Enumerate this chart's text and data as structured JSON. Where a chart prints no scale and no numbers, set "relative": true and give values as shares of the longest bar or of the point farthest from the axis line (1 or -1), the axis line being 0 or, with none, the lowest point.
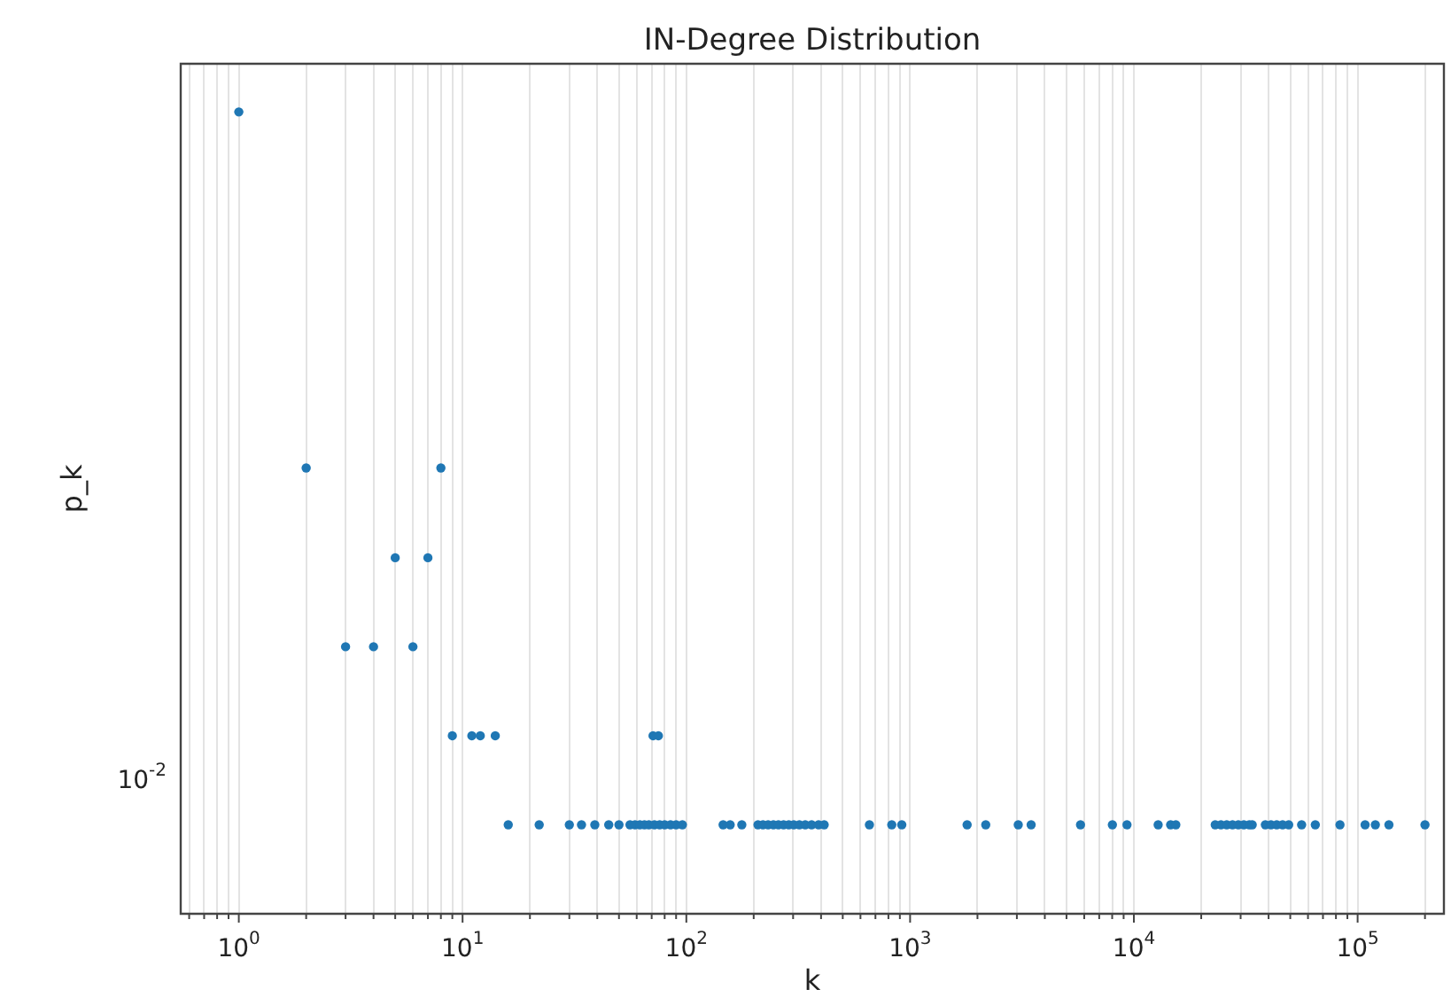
{
  "chart_data": {
    "type": "scatter",
    "title": "IN-Degree Distribution",
    "xlabel": "k",
    "ylabel": "p_k",
    "log": "x",
    "grid": "x",
    "marker": "circle",
    "relative": true,
    "annotations": [
      "10$^{-2}$"
    ],
    "xlim": [
      0.55,
      243000
    ],
    "xticks": [
      {
        "value": 1,
        "label": "10$^{0}$"
      },
      {
        "value": 10,
        "label": "10$^{1}$"
      },
      {
        "value": 100,
        "label": "10$^{2}$"
      },
      {
        "value": 1000,
        "label": "10$^{3}$"
      },
      {
        "value": 10000,
        "label": "10$^{4}$"
      },
      {
        "value": 100000,
        "label": "10$^{5}$"
      },
      {
        "value": 0.6,
        "label": null
      },
      {
        "value": 0.7,
        "label": null
      },
      {
        "value": 0.8,
        "label": null
      },
      {
        "value": 0.9,
        "label": null
      },
      {
        "value": 2,
        "label": null
      },
      {
        "value": 3,
        "label": null
      },
      {
        "value": 4,
        "label": null
      },
      {
        "value": 5,
        "label": null
      },
      {
        "value": 6,
        "label": null
      },
      {
        "value": 7,
        "label": null
      },
      {
        "value": 8,
        "label": null
      },
      {
        "value": 9,
        "label": null
      },
      {
        "value": 20,
        "label": null
      },
      {
        "value": 30,
        "label": null
      },
      {
        "value": 40,
        "label": null
      },
      {
        "value": 50,
        "label": null
      },
      {
        "value": 60,
        "label": null
      },
      {
        "value": 70,
        "label": null
      },
      {
        "value": 80,
        "label": null
      },
      {
        "value": 90,
        "label": null
      },
      {
        "value": 200,
        "label": null
      },
      {
        "value": 300,
        "label": null
      },
      {
        "value": 400,
        "label": null
      },
      {
        "value": 500,
        "label": null
      },
      {
        "value": 600,
        "label": null
      },
      {
        "value": 700,
        "label": null
      },
      {
        "value": 800,
        "label": null
      },
      {
        "value": 900,
        "label": null
      },
      {
        "value": 2000,
        "label": null
      },
      {
        "value": 3000,
        "label": null
      },
      {
        "value": 4000,
        "label": null
      },
      {
        "value": 5000,
        "label": null
      },
      {
        "value": 6000,
        "label": null
      },
      {
        "value": 7000,
        "label": null
      },
      {
        "value": 8000,
        "label": null
      },
      {
        "value": 9000,
        "label": null
      },
      {
        "value": 20000,
        "label": null
      },
      {
        "value": 30000,
        "label": null
      },
      {
        "value": 40000,
        "label": null
      },
      {
        "value": 50000,
        "label": null
      },
      {
        "value": 60000,
        "label": null
      },
      {
        "value": 70000,
        "label": null
      },
      {
        "value": 80000,
        "label": null
      },
      {
        "value": 90000,
        "label": null
      },
      {
        "value": 200000,
        "label": null
      }
    ],
    "series": [
      {
        "color": "#1f77b4",
        "x": [
          1,
          2,
          8,
          5,
          7,
          3,
          4,
          6,
          9,
          11,
          12,
          14,
          71,
          75
        ],
        "values": [
          1,
          0.556,
          0.556,
          0.444,
          0.444,
          0.333,
          0.333,
          0.333,
          0.222,
          0.222,
          0.222,
          0.222,
          0.222,
          0.222
        ]
      },
      {
        "color": "#1f77b4",
        "x": [
          16,
          22,
          30,
          34,
          39,
          45,
          50,
          56,
          59,
          62,
          65,
          68,
          72,
          76,
          80,
          85,
          90,
          96,
          146,
          157,
          177,
          209,
          220,
          232,
          245,
          258,
          272,
          287,
          302,
          320,
          340,
          363,
          390,
          413,
          658,
          828,
          918,
          1798,
          2178,
          3043,
          3475,
          5776,
          8017,
          9316,
          12840,
          14600,
          15400,
          23100,
          24500,
          26000,
          27600,
          29300,
          31000,
          32800,
          33800,
          38700,
          41000,
          43500,
          46200,
          49200,
          56200,
          64700,
          83400,
          108000,
          120000,
          138000,
          200000
        ],
        "values": [
          0.111,
          0.111,
          0.111,
          0.111,
          0.111,
          0.111,
          0.111,
          0.111,
          0.111,
          0.111,
          0.111,
          0.111,
          0.111,
          0.111,
          0.111,
          0.111,
          0.111,
          0.111,
          0.111,
          0.111,
          0.111,
          0.111,
          0.111,
          0.111,
          0.111,
          0.111,
          0.111,
          0.111,
          0.111,
          0.111,
          0.111,
          0.111,
          0.111,
          0.111,
          0.111,
          0.111,
          0.111,
          0.111,
          0.111,
          0.111,
          0.111,
          0.111,
          0.111,
          0.111,
          0.111,
          0.111,
          0.111,
          0.111,
          0.111,
          0.111,
          0.111,
          0.111,
          0.111,
          0.111,
          0.111,
          0.111,
          0.111,
          0.111,
          0.111,
          0.111,
          0.111,
          0.111,
          0.111,
          0.111,
          0.111,
          0.111,
          0.111
        ]
      }
    ]
  }
}
